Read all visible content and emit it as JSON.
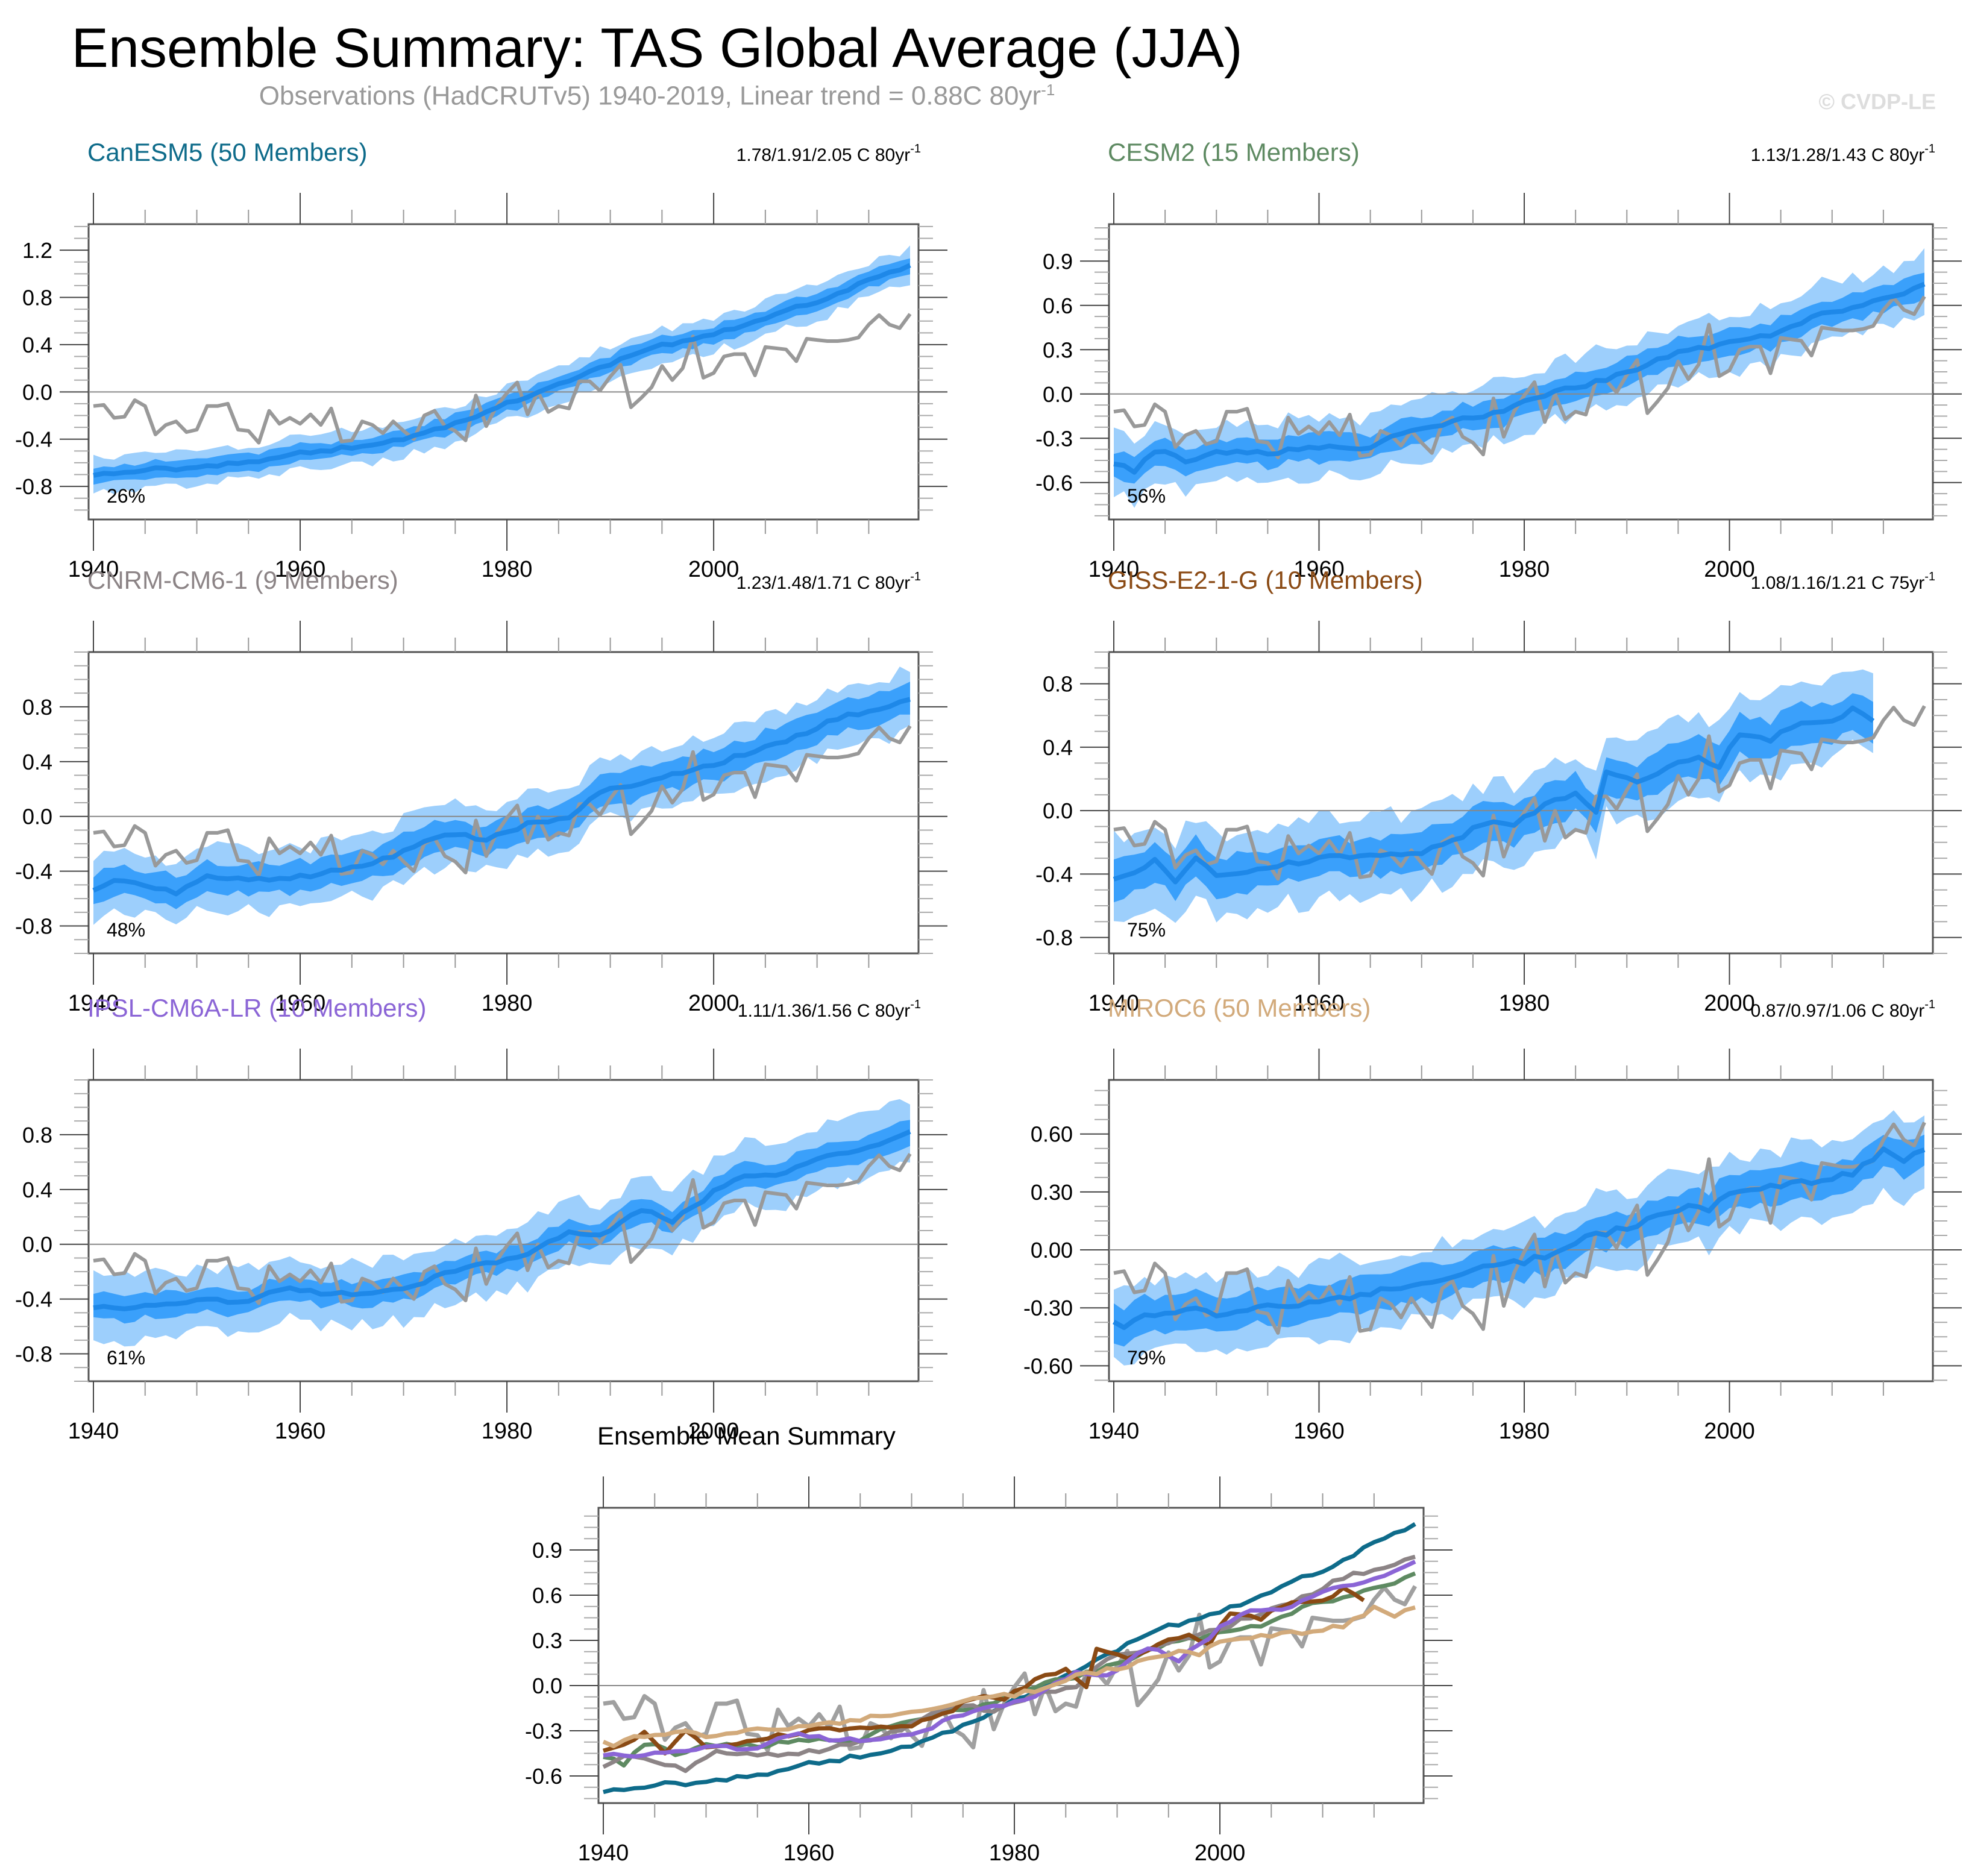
{
  "header": {
    "title": "Ensemble Summary: TAS Global Average (JJA)",
    "subtitle_text": "Observations (HadCRUTv5) 1940-2019, Linear trend = 0.88C 80yr",
    "subtitle_sup": "-1",
    "credit": "© CVDP-LE"
  },
  "colors": {
    "band_outer": "#9dcffc",
    "band_inner": "#3aa0fb",
    "ens_mean": "#1e88e8",
    "obs": "#999999",
    "zero_line": "#888888"
  },
  "chart_data": [
    {
      "type": "area",
      "id": "canesm5",
      "title": "CanESM5 (50 Members)",
      "title_color": "#0e6b8a",
      "trend_label": "1.78/1.91/2.05 C 80yr",
      "trend_sup": "-1",
      "rank_label": "26%",
      "x_start": 1940,
      "x_end": 2019,
      "xticks": [
        1940,
        1960,
        1980,
        2000
      ],
      "ylim": [
        -1.08,
        1.42
      ],
      "yticks": [
        -0.8,
        -0.4,
        0.0,
        0.4,
        0.8,
        1.2
      ],
      "ytick_labels": [
        "-0.8",
        "-0.4",
        "0.0",
        "0.4",
        "0.8",
        "1.2"
      ],
      "mean_keypoints": [
        [
          1940,
          -0.7
        ],
        [
          1945,
          -0.66
        ],
        [
          1950,
          -0.64
        ],
        [
          1955,
          -0.6
        ],
        [
          1960,
          -0.52
        ],
        [
          1965,
          -0.47
        ],
        [
          1970,
          -0.4
        ],
        [
          1975,
          -0.27
        ],
        [
          1980,
          -0.1
        ],
        [
          1985,
          0.07
        ],
        [
          1990,
          0.24
        ],
        [
          1995,
          0.39
        ],
        [
          2000,
          0.49
        ],
        [
          2005,
          0.63
        ],
        [
          2010,
          0.77
        ],
        [
          2015,
          0.94
        ],
        [
          2019,
          1.08
        ]
      ],
      "inner_halfwidth": 0.07,
      "outer_halfwidth": 0.14
    },
    {
      "type": "area",
      "id": "cesm2",
      "title": "CESM2 (15 Members)",
      "title_color": "#5e8a62",
      "trend_label": "1.13/1.28/1.43 C 80yr",
      "trend_sup": "-1",
      "rank_label": "56%",
      "x_start": 1940,
      "x_end": 2019,
      "xticks": [
        1940,
        1960,
        1980,
        2000
      ],
      "ylim": [
        -0.85,
        1.15
      ],
      "yticks": [
        -0.6,
        -0.3,
        0.0,
        0.3,
        0.6,
        0.9
      ],
      "ytick_labels": [
        "-0.6",
        "-0.3",
        "0.0",
        "0.3",
        "0.6",
        "0.9"
      ],
      "mean_keypoints": [
        [
          1940,
          -0.47
        ],
        [
          1942,
          -0.52
        ],
        [
          1944,
          -0.38
        ],
        [
          1947,
          -0.45
        ],
        [
          1950,
          -0.4
        ],
        [
          1955,
          -0.4
        ],
        [
          1960,
          -0.36
        ],
        [
          1964,
          -0.38
        ],
        [
          1968,
          -0.27
        ],
        [
          1972,
          -0.2
        ],
        [
          1976,
          -0.15
        ],
        [
          1980,
          -0.06
        ],
        [
          1984,
          0.03
        ],
        [
          1988,
          0.1
        ],
        [
          1992,
          0.2
        ],
        [
          1996,
          0.3
        ],
        [
          2000,
          0.34
        ],
        [
          2004,
          0.4
        ],
        [
          2008,
          0.52
        ],
        [
          2012,
          0.58
        ],
        [
          2016,
          0.66
        ],
        [
          2019,
          0.73
        ]
      ],
      "inner_halfwidth": 0.09,
      "outer_halfwidth": 0.19
    },
    {
      "type": "area",
      "id": "cnrm-cm6-1",
      "title": "CNRM-CM6-1 (9 Members)",
      "title_color": "#8c8486",
      "trend_label": "1.23/1.48/1.71 C 80yr",
      "trend_sup": "-1",
      "rank_label": "48%",
      "x_start": 1940,
      "x_end": 2019,
      "xticks": [
        1940,
        1960,
        1980,
        2000
      ],
      "ylim": [
        -1.0,
        1.2
      ],
      "yticks": [
        -0.8,
        -0.4,
        0.0,
        0.4,
        0.8
      ],
      "ytick_labels": [
        "-0.8",
        "-0.4",
        "0.0",
        "0.4",
        "0.8"
      ],
      "mean_keypoints": [
        [
          1940,
          -0.55
        ],
        [
          1942,
          -0.48
        ],
        [
          1945,
          -0.5
        ],
        [
          1948,
          -0.56
        ],
        [
          1951,
          -0.44
        ],
        [
          1955,
          -0.46
        ],
        [
          1960,
          -0.44
        ],
        [
          1965,
          -0.38
        ],
        [
          1970,
          -0.26
        ],
        [
          1974,
          -0.13
        ],
        [
          1978,
          -0.16
        ],
        [
          1982,
          -0.06
        ],
        [
          1986,
          -0.01
        ],
        [
          1989,
          0.18
        ],
        [
          1993,
          0.24
        ],
        [
          1996,
          0.31
        ],
        [
          2000,
          0.38
        ],
        [
          2004,
          0.48
        ],
        [
          2008,
          0.58
        ],
        [
          2012,
          0.72
        ],
        [
          2016,
          0.78
        ],
        [
          2019,
          0.85
        ]
      ],
      "inner_halfwidth": 0.11,
      "outer_halfwidth": 0.21
    },
    {
      "type": "area",
      "id": "giss-e2-1-g",
      "title": "GISS-E2-1-G (10 Members)",
      "title_color": "#8a4a14",
      "trend_label": "1.08/1.16/1.21 C 75yr",
      "trend_sup": "-1",
      "rank_label": "75%",
      "x_start": 1940,
      "x_end": 2014,
      "xticks": [
        1940,
        1960,
        1980,
        2000
      ],
      "ylim": [
        -0.9,
        1.0
      ],
      "yticks": [
        -0.8,
        -0.4,
        0.0,
        0.4,
        0.8
      ],
      "ytick_labels": [
        "-0.8",
        "-0.4",
        "0.0",
        "0.4",
        "0.8"
      ],
      "mean_keypoints": [
        [
          1940,
          -0.44
        ],
        [
          1942,
          -0.38
        ],
        [
          1944,
          -0.32
        ],
        [
          1946,
          -0.44
        ],
        [
          1948,
          -0.3
        ],
        [
          1950,
          -0.4
        ],
        [
          1955,
          -0.36
        ],
        [
          1960,
          -0.3
        ],
        [
          1965,
          -0.28
        ],
        [
          1970,
          -0.26
        ],
        [
          1973,
          -0.2
        ],
        [
          1976,
          -0.08
        ],
        [
          1979,
          -0.08
        ],
        [
          1982,
          0.03
        ],
        [
          1985,
          0.12
        ],
        [
          1987,
          0.0
        ],
        [
          1988,
          0.24
        ],
        [
          1991,
          0.17
        ],
        [
          1994,
          0.28
        ],
        [
          1997,
          0.33
        ],
        [
          1999,
          0.28
        ],
        [
          2001,
          0.49
        ],
        [
          2004,
          0.45
        ],
        [
          2007,
          0.56
        ],
        [
          2010,
          0.55
        ],
        [
          2012,
          0.65
        ],
        [
          2014,
          0.58
        ]
      ],
      "inner_halfwidth": 0.12,
      "outer_halfwidth": 0.24
    },
    {
      "type": "area",
      "id": "ipsl-cm6a-lr",
      "title": "IPSL-CM6A-LR (10 Members)",
      "title_color": "#8b65d6",
      "trend_label": "1.11/1.36/1.56 C 80yr",
      "trend_sup": "-1",
      "rank_label": "61%",
      "x_start": 1940,
      "x_end": 2019,
      "xticks": [
        1940,
        1960,
        1980,
        2000
      ],
      "ylim": [
        -1.0,
        1.2
      ],
      "yticks": [
        -0.8,
        -0.4,
        0.0,
        0.4,
        0.8
      ],
      "ytick_labels": [
        "-0.8",
        "-0.4",
        "0.0",
        "0.4",
        "0.8"
      ],
      "mean_keypoints": [
        [
          1940,
          -0.46
        ],
        [
          1945,
          -0.46
        ],
        [
          1950,
          -0.4
        ],
        [
          1955,
          -0.42
        ],
        [
          1958,
          -0.32
        ],
        [
          1962,
          -0.35
        ],
        [
          1966,
          -0.36
        ],
        [
          1970,
          -0.32
        ],
        [
          1974,
          -0.22
        ],
        [
          1978,
          -0.14
        ],
        [
          1982,
          -0.07
        ],
        [
          1986,
          0.1
        ],
        [
          1989,
          0.06
        ],
        [
          1993,
          0.25
        ],
        [
          1996,
          0.17
        ],
        [
          2000,
          0.38
        ],
        [
          2003,
          0.5
        ],
        [
          2007,
          0.52
        ],
        [
          2011,
          0.64
        ],
        [
          2015,
          0.7
        ],
        [
          2019,
          0.82
        ]
      ],
      "inner_halfwidth": 0.09,
      "outer_halfwidth": 0.22
    },
    {
      "type": "area",
      "id": "miroc6",
      "title": "MIROC6 (50 Members)",
      "title_color": "#d2aa7b",
      "trend_label": "0.87/0.97/1.06 C 80yr",
      "trend_sup": "-1",
      "rank_label": "79%",
      "x_start": 1940,
      "x_end": 2019,
      "xticks": [
        1940,
        1960,
        1980,
        2000
      ],
      "ylim": [
        -0.68,
        0.88
      ],
      "yticks": [
        -0.6,
        -0.3,
        0.0,
        0.3,
        0.6
      ],
      "ytick_labels": [
        "-0.60",
        "-0.30",
        "0.00",
        "0.30",
        "0.60"
      ],
      "mean_keypoints": [
        [
          1940,
          -0.36
        ],
        [
          1941,
          -0.4
        ],
        [
          1943,
          -0.35
        ],
        [
          1945,
          -0.34
        ],
        [
          1947,
          -0.3
        ],
        [
          1950,
          -0.33
        ],
        [
          1955,
          -0.29
        ],
        [
          1960,
          -0.27
        ],
        [
          1965,
          -0.22
        ],
        [
          1970,
          -0.17
        ],
        [
          1975,
          -0.1
        ],
        [
          1978,
          -0.08
        ],
        [
          1980,
          -0.06
        ],
        [
          1983,
          -0.02
        ],
        [
          1986,
          0.07
        ],
        [
          1990,
          0.11
        ],
        [
          1993,
          0.17
        ],
        [
          1996,
          0.23
        ],
        [
          1998,
          0.21
        ],
        [
          2000,
          0.28
        ],
        [
          2004,
          0.33
        ],
        [
          2008,
          0.35
        ],
        [
          2012,
          0.4
        ],
        [
          2015,
          0.51
        ],
        [
          2017,
          0.47
        ],
        [
          2019,
          0.53
        ]
      ],
      "inner_halfwidth": 0.09,
      "outer_halfwidth": 0.18
    },
    {
      "type": "line",
      "id": "ensemble-mean-summary",
      "title": "Ensemble Mean Summary",
      "title_color": "#000000",
      "x_start": 1940,
      "x_end": 2019,
      "xticks": [
        1940,
        1960,
        1980,
        2000
      ],
      "ylim": [
        -0.78,
        1.18
      ],
      "yticks": [
        -0.6,
        -0.3,
        0.0,
        0.3,
        0.6,
        0.9
      ],
      "ytick_labels": [
        "-0.6",
        "-0.3",
        "0.0",
        "0.3",
        "0.6",
        "0.9"
      ],
      "series_refs": [
        {
          "name": "Observations",
          "color": "#a0a0a0",
          "ref": "obs"
        },
        {
          "name": "CanESM5",
          "color": "#0e6b8a",
          "ref": "canesm5"
        },
        {
          "name": "CESM2",
          "color": "#5e8a62",
          "ref": "cesm2"
        },
        {
          "name": "CNRM-CM6-1",
          "color": "#8c8486",
          "ref": "cnrm-cm6-1"
        },
        {
          "name": "GISS-E2-1-G",
          "color": "#8a4a14",
          "ref": "giss-e2-1-g"
        },
        {
          "name": "IPSL-CM6A-LR",
          "color": "#8b65d6",
          "ref": "ipsl-cm6a-lr"
        },
        {
          "name": "MIROC6",
          "color": "#d2aa7b",
          "ref": "miroc6"
        }
      ]
    }
  ],
  "observations": {
    "name": "HadCRUTv5",
    "x_start": 1940,
    "values": [
      -0.12,
      -0.11,
      -0.22,
      -0.21,
      -0.07,
      -0.12,
      -0.36,
      -0.28,
      -0.25,
      -0.34,
      -0.32,
      -0.12,
      -0.12,
      -0.1,
      -0.32,
      -0.33,
      -0.43,
      -0.16,
      -0.27,
      -0.22,
      -0.27,
      -0.19,
      -0.28,
      -0.14,
      -0.42,
      -0.41,
      -0.25,
      -0.28,
      -0.35,
      -0.25,
      -0.33,
      -0.4,
      -0.2,
      -0.16,
      -0.29,
      -0.33,
      -0.41,
      -0.03,
      -0.29,
      -0.12,
      -0.01,
      0.08,
      -0.19,
      0.0,
      -0.17,
      -0.12,
      -0.14,
      0.09,
      0.09,
      0.01,
      0.13,
      0.23,
      -0.13,
      -0.05,
      0.04,
      0.22,
      0.1,
      0.2,
      0.47,
      0.12,
      0.16,
      0.3,
      0.32,
      0.32,
      0.14,
      0.38,
      0.37,
      0.36,
      0.26,
      0.45,
      0.44,
      0.43,
      0.43,
      0.44,
      0.46,
      0.57,
      0.65,
      0.57,
      0.54,
      0.66
    ]
  }
}
